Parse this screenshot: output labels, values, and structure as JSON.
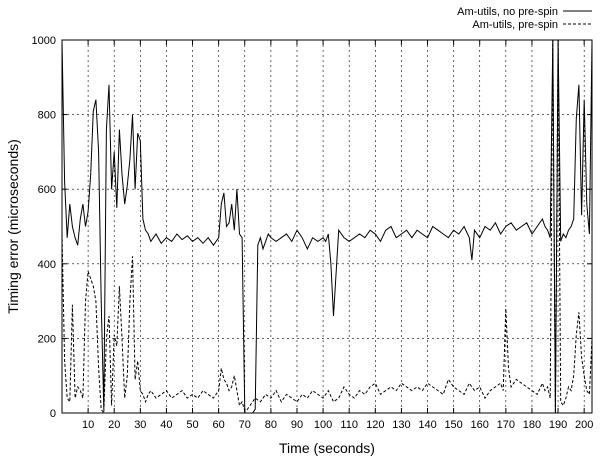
{
  "chart_data": {
    "type": "line",
    "title": "",
    "xlabel": "Time (seconds)",
    "ylabel": "Timing error (microseconds)",
    "xlim": [
      0,
      203
    ],
    "ylim": [
      0,
      1000
    ],
    "x_ticks": [
      10,
      20,
      30,
      40,
      50,
      60,
      70,
      80,
      90,
      100,
      110,
      120,
      130,
      140,
      150,
      160,
      170,
      180,
      190,
      200
    ],
    "y_ticks": [
      0,
      200,
      400,
      600,
      800,
      1000
    ],
    "grid": true,
    "legend_position": "top-right",
    "series": [
      {
        "name": "Am-utils, no pre-spin",
        "style": "solid",
        "color": "#000000",
        "x": [
          0,
          1,
          2,
          3,
          4,
          5,
          6,
          7,
          8,
          9,
          10,
          11,
          12,
          13,
          14,
          15,
          16,
          17,
          18,
          19,
          20,
          21,
          22,
          23,
          24,
          25,
          26,
          27,
          28,
          29,
          30,
          31,
          32,
          33,
          34,
          36,
          38,
          40,
          42,
          44,
          46,
          48,
          50,
          52,
          54,
          56,
          58,
          60,
          61,
          62,
          63,
          64,
          65,
          66,
          67,
          68,
          69,
          70,
          71,
          72,
          73,
          74,
          75,
          76,
          77,
          78,
          79,
          80,
          82,
          84,
          86,
          88,
          90,
          92,
          94,
          96,
          98,
          100,
          101,
          102,
          103,
          104,
          106,
          108,
          110,
          112,
          114,
          116,
          118,
          120,
          122,
          124,
          126,
          128,
          130,
          132,
          134,
          136,
          138,
          140,
          142,
          144,
          146,
          148,
          150,
          152,
          154,
          156,
          157,
          158,
          160,
          162,
          164,
          166,
          168,
          170,
          172,
          174,
          176,
          178,
          180,
          182,
          184,
          185,
          186,
          187,
          188,
          189,
          190,
          191,
          192,
          193,
          194,
          195,
          196,
          197,
          198,
          199,
          200,
          201,
          202,
          203
        ],
        "values": [
          1000,
          620,
          470,
          560,
          500,
          470,
          450,
          520,
          560,
          500,
          540,
          640,
          810,
          840,
          700,
          300,
          10,
          760,
          880,
          600,
          700,
          550,
          760,
          640,
          560,
          610,
          680,
          800,
          600,
          750,
          730,
          520,
          490,
          480,
          460,
          480,
          455,
          470,
          460,
          480,
          465,
          475,
          460,
          470,
          455,
          470,
          450,
          470,
          560,
          590,
          500,
          510,
          560,
          490,
          600,
          480,
          470,
          0,
          0,
          0,
          0,
          10,
          450,
          470,
          440,
          460,
          480,
          470,
          460,
          470,
          480,
          460,
          490,
          470,
          440,
          470,
          460,
          470,
          460,
          480,
          400,
          260,
          490,
          470,
          460,
          470,
          480,
          470,
          490,
          480,
          460,
          490,
          500,
          470,
          480,
          490,
          470,
          490,
          480,
          470,
          500,
          490,
          480,
          470,
          490,
          480,
          500,
          470,
          410,
          490,
          470,
          500,
          490,
          510,
          480,
          500,
          510,
          490,
          500,
          510,
          480,
          500,
          520,
          500,
          490,
          470,
          1000,
          0,
          1000,
          460,
          480,
          470,
          490,
          500,
          520,
          790,
          880,
          530,
          840,
          560,
          480,
          1000
        ],
        "note_x": "approximate"
      },
      {
        "name": "Am-utils, pre-spin",
        "style": "dashed",
        "color": "#000000",
        "x": [
          0,
          1,
          2,
          3,
          4,
          5,
          6,
          7,
          8,
          9,
          10,
          11,
          12,
          13,
          14,
          15,
          16,
          17,
          18,
          19,
          20,
          21,
          22,
          23,
          24,
          25,
          26,
          27,
          28,
          29,
          30,
          31,
          32,
          33,
          34,
          36,
          38,
          40,
          42,
          44,
          46,
          48,
          50,
          52,
          54,
          56,
          58,
          60,
          61,
          62,
          63,
          64,
          65,
          66,
          67,
          68,
          69,
          70,
          71,
          72,
          74,
          76,
          78,
          80,
          82,
          84,
          86,
          88,
          90,
          92,
          94,
          96,
          98,
          100,
          102,
          104,
          106,
          108,
          110,
          112,
          114,
          116,
          118,
          120,
          122,
          124,
          126,
          128,
          130,
          132,
          134,
          136,
          138,
          140,
          142,
          144,
          146,
          148,
          150,
          152,
          154,
          156,
          158,
          160,
          162,
          164,
          166,
          168,
          169,
          170,
          171,
          172,
          174,
          176,
          178,
          180,
          182,
          184,
          185,
          186,
          187,
          188,
          189,
          190,
          191,
          192,
          193,
          194,
          195,
          196,
          197,
          198,
          199,
          200,
          201,
          202,
          203
        ],
        "values": [
          480,
          140,
          40,
          30,
          290,
          40,
          70,
          60,
          40,
          300,
          380,
          360,
          340,
          300,
          120,
          10,
          0,
          200,
          260,
          20,
          210,
          180,
          340,
          200,
          40,
          100,
          300,
          420,
          90,
          140,
          60,
          50,
          30,
          50,
          60,
          40,
          50,
          60,
          40,
          50,
          60,
          40,
          50,
          40,
          60,
          50,
          40,
          60,
          120,
          90,
          80,
          60,
          70,
          100,
          60,
          20,
          30,
          5,
          10,
          20,
          40,
          30,
          50,
          40,
          60,
          30,
          50,
          40,
          30,
          50,
          40,
          60,
          50,
          40,
          60,
          30,
          40,
          70,
          50,
          40,
          60,
          50,
          70,
          80,
          50,
          60,
          70,
          60,
          80,
          70,
          60,
          70,
          60,
          80,
          70,
          60,
          50,
          90,
          70,
          60,
          50,
          80,
          60,
          70,
          40,
          60,
          70,
          80,
          60,
          280,
          120,
          70,
          90,
          80,
          70,
          60,
          50,
          80,
          60,
          70,
          40,
          1000,
          0,
          1000,
          30,
          20,
          40,
          70,
          60,
          100,
          210,
          270,
          150,
          100,
          60,
          50,
          200
        ]
      }
    ]
  }
}
